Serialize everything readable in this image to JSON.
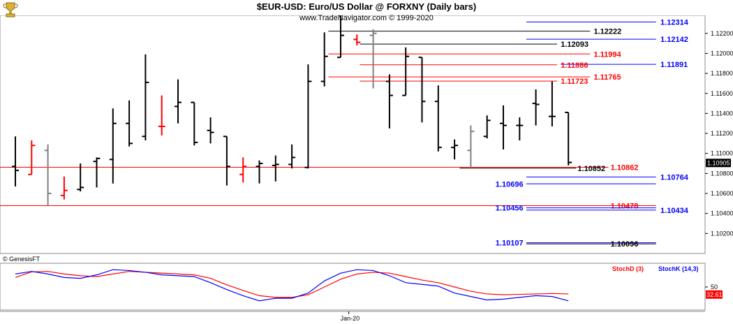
{
  "header": {
    "title": "$EUR-USD:  Euro/US Dollar @ FORXNY  (Daily bars)",
    "subtitle": "www.TradeNavigator.com © 1999-2020"
  },
  "credit": "© GenesisFT",
  "indicator": {
    "stochD": "StochD (3)",
    "stochK": "StochK (14,3)"
  },
  "colors": {
    "bull": "#000000",
    "bear": "#ff0000",
    "neutral": "#808080",
    "blue": "#0000ff",
    "red": "#ff0000",
    "black": "#000000"
  },
  "chart_data": [
    {
      "type": "ohlc",
      "title": "$EUR-USD:  Euro/US Dollar @ FORXNY  (Daily bars)",
      "y_ticks": [
        "1.12200",
        "1.12000",
        "1.11800",
        "1.11600",
        "1.11400",
        "1.11200",
        "1.11000",
        "1.10800",
        "1.10600",
        "1.10400",
        "1.10200"
      ],
      "y_tick_values": [
        1.122,
        1.12,
        1.118,
        1.116,
        1.114,
        1.112,
        1.11,
        1.108,
        1.106,
        1.104,
        1.102
      ],
      "ylim": [
        1.1,
        1.1238
      ],
      "x_ticks": [
        "Jan-20"
      ],
      "last_price": "1.10905",
      "bars": [
        {
          "o": 1.1087,
          "h": 1.1117,
          "l": 1.1067,
          "c": 1.1083,
          "color": "bull"
        },
        {
          "o": 1.1079,
          "h": 1.1113,
          "l": 1.1079,
          "c": 1.1108,
          "color": "bear"
        },
        {
          "o": 1.1103,
          "h": 1.1109,
          "l": 1.1048,
          "c": 1.106,
          "color": "neutral"
        },
        {
          "o": 1.1058,
          "h": 1.1077,
          "l": 1.1054,
          "c": 1.1063,
          "color": "bear"
        },
        {
          "o": 1.1064,
          "h": 1.109,
          "l": 1.1062,
          "c": 1.1066,
          "color": "bull"
        },
        {
          "o": 1.1092,
          "h": 1.1096,
          "l": 1.1066,
          "c": 1.1095,
          "color": "bull"
        },
        {
          "o": 1.1094,
          "h": 1.1145,
          "l": 1.107,
          "c": 1.113,
          "color": "bull"
        },
        {
          "o": 1.113,
          "h": 1.1153,
          "l": 1.1107,
          "c": 1.111,
          "color": "bull"
        },
        {
          "o": 1.1117,
          "h": 1.1199,
          "l": 1.1113,
          "c": 1.1171,
          "color": "bull"
        },
        {
          "o": 1.1127,
          "h": 1.1158,
          "l": 1.1118,
          "c": 1.1127,
          "color": "bear"
        },
        {
          "o": 1.1147,
          "h": 1.1174,
          "l": 1.113,
          "c": 1.1151,
          "color": "bull"
        },
        {
          "o": 1.1151,
          "h": 1.1151,
          "l": 1.1108,
          "c": 1.1111,
          "color": "bull"
        },
        {
          "o": 1.1123,
          "h": 1.1136,
          "l": 1.111,
          "c": 1.1121,
          "color": "bull"
        },
        {
          "o": 1.1117,
          "h": 1.1117,
          "l": 1.1068,
          "c": 1.1087,
          "color": "bull"
        },
        {
          "o": 1.1079,
          "h": 1.1096,
          "l": 1.1071,
          "c": 1.1087,
          "color": "bear"
        },
        {
          "o": 1.1087,
          "h": 1.1093,
          "l": 1.107,
          "c": 1.109,
          "color": "bull"
        },
        {
          "o": 1.1088,
          "h": 1.1098,
          "l": 1.1072,
          "c": 1.1089,
          "color": "bull"
        },
        {
          "o": 1.1089,
          "h": 1.1109,
          "l": 1.1085,
          "c": 1.1096,
          "color": "bull"
        },
        {
          "o": 1.1086,
          "h": 1.1189,
          "l": 1.1085,
          "c": 1.1172,
          "color": "bull"
        },
        {
          "o": 1.1172,
          "h": 1.1221,
          "l": 1.1167,
          "c": 1.1197,
          "color": "bull"
        },
        {
          "o": 1.1196,
          "h": 1.1238,
          "l": 1.1196,
          "c": 1.1218,
          "color": "bull"
        },
        {
          "o": 1.1214,
          "h": 1.1219,
          "l": 1.1208,
          "c": 1.1211,
          "color": "bear"
        },
        {
          "o": 1.1218,
          "h": 1.1224,
          "l": 1.1165,
          "c": 1.122,
          "color": "neutral"
        },
        {
          "o": 1.1172,
          "h": 1.1179,
          "l": 1.1125,
          "c": 1.1158,
          "color": "bull"
        },
        {
          "o": 1.1158,
          "h": 1.1206,
          "l": 1.1158,
          "c": 1.1197,
          "color": "bull"
        },
        {
          "o": 1.1196,
          "h": 1.1196,
          "l": 1.1131,
          "c": 1.1152,
          "color": "bull"
        },
        {
          "o": 1.1152,
          "h": 1.1168,
          "l": 1.1102,
          "c": 1.1106,
          "color": "bull"
        },
        {
          "o": 1.1106,
          "h": 1.1114,
          "l": 1.1094,
          "c": 1.1108,
          "color": "bull"
        },
        {
          "o": 1.1103,
          "h": 1.1128,
          "l": 1.1086,
          "c": 1.1122,
          "color": "neutral"
        },
        {
          "o": 1.1117,
          "h": 1.1138,
          "l": 1.1115,
          "c": 1.1133,
          "color": "bull"
        },
        {
          "o": 1.113,
          "h": 1.1148,
          "l": 1.1104,
          "c": 1.1128,
          "color": "bull"
        },
        {
          "o": 1.1128,
          "h": 1.1136,
          "l": 1.1113,
          "c": 1.1128,
          "color": "bull"
        },
        {
          "o": 1.115,
          "h": 1.1164,
          "l": 1.1128,
          "c": 1.1149,
          "color": "bull"
        },
        {
          "o": 1.1137,
          "h": 1.1172,
          "l": 1.1127,
          "c": 1.1137,
          "color": "bull"
        },
        {
          "o": 1.1141,
          "h": 1.1141,
          "l": 1.1088,
          "c": 1.1091,
          "color": "bull"
        }
      ],
      "levels": [
        {
          "value": 1.12314,
          "label": "1.12314",
          "color": "blue",
          "text_x": 0.901,
          "line_from": 0.718,
          "line_to": 0.895
        },
        {
          "value": 1.12222,
          "label": "1.12222",
          "color": "black",
          "text_x": 0.81,
          "line_from": 0.448,
          "line_to": 0.805
        },
        {
          "value": 1.12142,
          "label": "1.12142",
          "color": "blue",
          "text_x": 0.901,
          "line_from": 0.718,
          "line_to": 0.895
        },
        {
          "value": 1.12093,
          "label": "1.12093",
          "color": "black",
          "text_x": 0.765,
          "line_from": 0.491,
          "line_to": 0.76
        },
        {
          "value": 1.11994,
          "label": "1.11994",
          "color": "red",
          "text_x": 0.81,
          "line_from": 0.448,
          "line_to": 0.805
        },
        {
          "value": 1.11891,
          "label": "1.11891",
          "color": "blue",
          "text_x": 0.901,
          "line_from": 0.765,
          "line_to": 0.895
        },
        {
          "value": 1.11886,
          "label": "1.11886",
          "color": "red",
          "text_x": 0.765,
          "line_from": 0.491,
          "line_to": 0.76
        },
        {
          "value": 1.11765,
          "label": "1.11765",
          "color": "red",
          "text_x": 0.81,
          "line_from": 0.448,
          "line_to": 0.805
        },
        {
          "value": 1.11723,
          "label": "1.11723",
          "color": "red",
          "text_x": 0.765,
          "line_from": 0.491,
          "line_to": 0.76
        },
        {
          "value": 1.10862,
          "label": "1.10862",
          "color": "red",
          "text_x": 0.833,
          "line_from": 0.0,
          "line_to": 0.83
        },
        {
          "value": 1.10852,
          "label": "1.10852",
          "color": "black",
          "text_x": 0.788,
          "line_from": 0.627,
          "line_to": 0.786
        },
        {
          "value": 1.10764,
          "label": "1.10764",
          "color": "blue",
          "text_x": 0.901,
          "line_from": 0.718,
          "line_to": 0.895
        },
        {
          "value": 1.10696,
          "label": "1.10696",
          "color": "blue",
          "text_x": 0.676,
          "line_from": 0.718,
          "line_to": 0.895
        },
        {
          "value": 1.10478,
          "label": "1.10478",
          "color": "red",
          "text_x": 0.833,
          "line_from": 0.0,
          "line_to": 0.895
        },
        {
          "value": 1.10456,
          "label": "1.10456",
          "color": "blue",
          "text_x": 0.676,
          "line_from": 0.718,
          "line_to": 0.895
        },
        {
          "value": 1.10434,
          "label": "1.10434",
          "color": "blue",
          "text_x": 0.901,
          "line_from": 0.718,
          "line_to": 0.895
        },
        {
          "value": 1.10107,
          "label": "1.10107",
          "color": "blue",
          "text_x": 0.676,
          "line_from": 0.718,
          "line_to": 0.895
        },
        {
          "value": 1.10096,
          "label": "1.10096",
          "color": "black",
          "text_x": 0.833,
          "line_from": 0.718,
          "line_to": 0.895
        }
      ]
    },
    {
      "type": "line",
      "title": "",
      "ylim": [
        0,
        100
      ],
      "y_ticks": [
        "50"
      ],
      "last_value": "32.61",
      "series": [
        {
          "name": "StochD (3)",
          "color": "red",
          "values": [
            72,
            85,
            86,
            80,
            76,
            74,
            80,
            86,
            84,
            82,
            80,
            78,
            70,
            55,
            42,
            30,
            26,
            26,
            32,
            50,
            68,
            80,
            84,
            82,
            74,
            66,
            60,
            50,
            40,
            34,
            32,
            33,
            34,
            35,
            34
          ]
        },
        {
          "name": "StochK (14,3)",
          "color": "blue",
          "values": [
            80,
            86,
            80,
            72,
            70,
            78,
            90,
            88,
            84,
            78,
            76,
            74,
            60,
            44,
            30,
            18,
            24,
            24,
            36,
            64,
            82,
            90,
            88,
            76,
            60,
            56,
            52,
            36,
            28,
            20,
            22,
            26,
            30,
            28,
            18
          ]
        }
      ]
    }
  ]
}
